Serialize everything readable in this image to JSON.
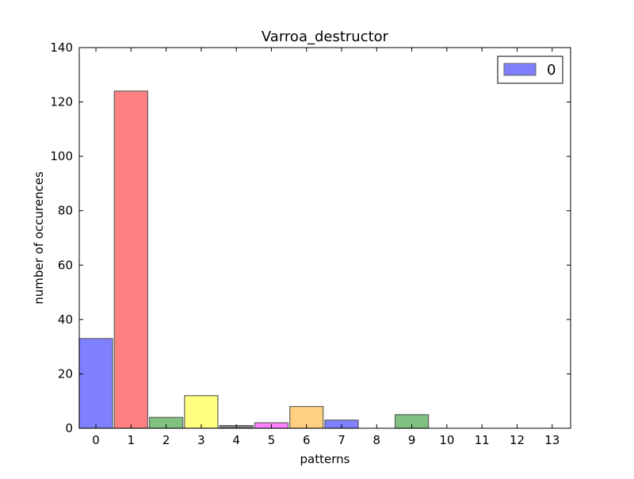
{
  "chart_data": {
    "type": "bar",
    "title": "Varroa_destructor",
    "xlabel": "patterns",
    "ylabel": "number of occurences",
    "categories": [
      "0",
      "1",
      "2",
      "3",
      "4",
      "5",
      "6",
      "7",
      "8",
      "9",
      "10",
      "11",
      "12",
      "13"
    ],
    "values": [
      33,
      124,
      4,
      12,
      1,
      2,
      8,
      3,
      0,
      5,
      0,
      0,
      0,
      0
    ],
    "bar_colors": [
      "#8080ff",
      "#ff8080",
      "#80c080",
      "#ffff80",
      "#808080",
      "#ff80ff",
      "#ffd080",
      "#8080ff",
      "#80c080",
      "#80c080",
      "#8080ff",
      "#8080ff",
      "#8080ff",
      "#8080ff"
    ],
    "bar_edge_color": "#606060",
    "ylim": [
      0,
      140
    ],
    "yticks": [
      0,
      20,
      40,
      60,
      80,
      100,
      120,
      140
    ],
    "grid": false,
    "legend": {
      "position": "top-right",
      "entries": [
        {
          "label": "0",
          "color": "#8080ff"
        }
      ]
    }
  }
}
